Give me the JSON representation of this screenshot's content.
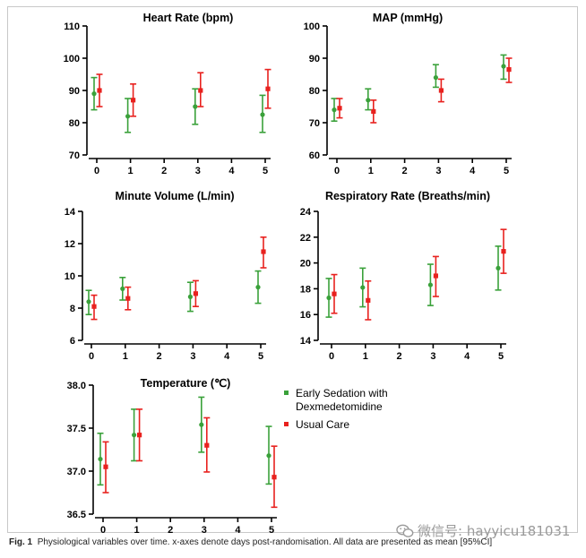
{
  "colors": {
    "early": "#3aa13a",
    "usual": "#e8211e",
    "axis": "#000000"
  },
  "legend": {
    "early_line1": "Early Sedation with",
    "early_line2": "Dexmedetomidine",
    "usual": "Usual Care"
  },
  "caption": {
    "label": "Fig. 1",
    "text": "Physiological variables over time. x-axes denote days post-randomisation. All data are presented as mean [95%CI]"
  },
  "watermark": {
    "text": "微信号: hayyicu181031",
    "icon": "wechat-icon"
  },
  "chart_data": [
    {
      "id": "heart-rate",
      "type": "scatter",
      "title": "Heart Rate (bpm)",
      "xlim": [
        0,
        5
      ],
      "xticks": [
        "0",
        "1",
        "2",
        "3",
        "4",
        "5"
      ],
      "ylim": [
        70,
        110
      ],
      "yticks": [
        "70",
        "80",
        "90",
        "100",
        "110"
      ],
      "series": [
        {
          "name": "Early Sedation with Dexmedetomidine",
          "key": "early",
          "x": [
            0,
            1,
            3,
            5
          ],
          "mean": [
            89,
            82,
            85,
            82.5
          ],
          "lo": [
            84,
            77,
            79.5,
            77
          ],
          "hi": [
            94,
            87.5,
            90.5,
            88.5
          ]
        },
        {
          "name": "Usual Care",
          "key": "usual",
          "x": [
            0,
            1,
            3,
            5
          ],
          "mean": [
            90,
            87,
            90,
            90.5
          ],
          "lo": [
            85,
            82,
            85,
            84.5
          ],
          "hi": [
            95,
            92,
            95.5,
            96.5
          ]
        }
      ]
    },
    {
      "id": "map",
      "type": "scatter",
      "title": "MAP (mmHg)",
      "xlim": [
        0,
        5
      ],
      "xticks": [
        "0",
        "1",
        "2",
        "3",
        "4",
        "5"
      ],
      "ylim": [
        60,
        100
      ],
      "yticks": [
        "60",
        "70",
        "80",
        "90",
        "100"
      ],
      "series": [
        {
          "name": "Early Sedation with Dexmedetomidine",
          "key": "early",
          "x": [
            0,
            1,
            3,
            5
          ],
          "mean": [
            74,
            77,
            84,
            87.5
          ],
          "lo": [
            70.5,
            74,
            81,
            83.5
          ],
          "hi": [
            77.5,
            80.5,
            88,
            91
          ]
        },
        {
          "name": "Usual Care",
          "key": "usual",
          "x": [
            0,
            1,
            3,
            5
          ],
          "mean": [
            74.5,
            73.5,
            80,
            86.5
          ],
          "lo": [
            71.5,
            70,
            76.5,
            82.5
          ],
          "hi": [
            77.5,
            77,
            83.5,
            90
          ]
        }
      ]
    },
    {
      "id": "minute-volume",
      "type": "scatter",
      "title": "Minute Volume (L/min)",
      "xlim": [
        0,
        5
      ],
      "xticks": [
        "0",
        "1",
        "2",
        "3",
        "4",
        "5"
      ],
      "ylim": [
        6,
        14
      ],
      "yticks": [
        "6",
        "8",
        "10",
        "12",
        "14"
      ],
      "series": [
        {
          "name": "Early Sedation with Dexmedetomidine",
          "key": "early",
          "x": [
            0,
            1,
            3,
            5
          ],
          "mean": [
            8.4,
            9.2,
            8.7,
            9.3
          ],
          "lo": [
            7.6,
            8.5,
            7.8,
            8.3
          ],
          "hi": [
            9.1,
            9.9,
            9.6,
            10.3
          ]
        },
        {
          "name": "Usual Care",
          "key": "usual",
          "x": [
            0,
            1,
            3,
            5
          ],
          "mean": [
            8.1,
            8.6,
            8.9,
            11.5
          ],
          "lo": [
            7.3,
            7.9,
            8.1,
            10.5
          ],
          "hi": [
            8.8,
            9.3,
            9.7,
            12.4
          ]
        }
      ]
    },
    {
      "id": "respiratory-rate",
      "type": "scatter",
      "title": "Respiratory Rate (Breaths/min)",
      "xlim": [
        0,
        5
      ],
      "xticks": [
        "0",
        "1",
        "2",
        "3",
        "4",
        "5"
      ],
      "ylim": [
        14,
        24
      ],
      "yticks": [
        "14",
        "16",
        "18",
        "20",
        "22",
        "24"
      ],
      "series": [
        {
          "name": "Early Sedation with Dexmedetomidine",
          "key": "early",
          "x": [
            0,
            1,
            3,
            5
          ],
          "mean": [
            17.3,
            18.1,
            18.3,
            19.6
          ],
          "lo": [
            15.8,
            16.6,
            16.7,
            17.9
          ],
          "hi": [
            18.8,
            19.6,
            19.9,
            21.3
          ]
        },
        {
          "name": "Usual Care",
          "key": "usual",
          "x": [
            0,
            1,
            3,
            5
          ],
          "mean": [
            17.6,
            17.1,
            19.0,
            20.9
          ],
          "lo": [
            16.1,
            15.6,
            17.4,
            19.2
          ],
          "hi": [
            19.1,
            18.6,
            20.5,
            22.6
          ]
        }
      ]
    },
    {
      "id": "temperature",
      "type": "scatter",
      "title": "Temperature (℃)",
      "xlim": [
        0,
        5
      ],
      "xticks": [
        "0",
        "1",
        "2",
        "3",
        "4",
        "5"
      ],
      "ylim": [
        36.5,
        38.0
      ],
      "yticks": [
        "36.5",
        "37.0",
        "37.5",
        "38.0"
      ],
      "series": [
        {
          "name": "Early Sedation with Dexmedetomidine",
          "key": "early",
          "x": [
            0,
            1,
            3,
            5
          ],
          "mean": [
            37.14,
            37.42,
            37.54,
            37.18
          ],
          "lo": [
            36.84,
            37.12,
            37.22,
            36.85
          ],
          "hi": [
            37.44,
            37.72,
            37.86,
            37.52
          ]
        },
        {
          "name": "Usual Care",
          "key": "usual",
          "x": [
            0,
            1,
            3,
            5
          ],
          "mean": [
            37.05,
            37.42,
            37.3,
            36.93
          ],
          "lo": [
            36.75,
            37.12,
            36.99,
            36.58
          ],
          "hi": [
            37.34,
            37.72,
            37.62,
            37.29
          ]
        }
      ]
    }
  ]
}
